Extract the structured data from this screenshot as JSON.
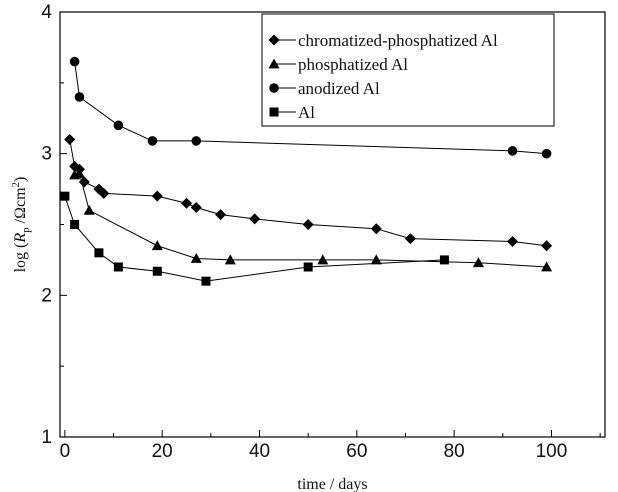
{
  "chart_data": {
    "type": "line",
    "xlabel": "time / days",
    "ylabel": {
      "prefix": "log (",
      "italic": "R",
      "subscript": "p",
      "middle": " /Ωcm",
      "superscript": "2",
      "suffix": ")"
    },
    "xlim": [
      -1,
      111
    ],
    "ylim": [
      1,
      4
    ],
    "xticks": [
      0,
      20,
      40,
      60,
      80,
      100
    ],
    "yticks": [
      1,
      2,
      3,
      4
    ],
    "grid": false,
    "legend_position": "top-right",
    "series": [
      {
        "name": "chromatized-phosphatized Al",
        "marker": "diamond",
        "x": [
          1,
          2,
          3,
          4,
          7,
          8,
          19,
          25,
          27,
          32,
          39,
          50,
          64,
          71,
          92,
          99
        ],
        "y": [
          3.1,
          2.91,
          2.89,
          2.8,
          2.75,
          2.72,
          2.7,
          2.65,
          2.62,
          2.57,
          2.54,
          2.5,
          2.47,
          2.4,
          2.38,
          2.35
        ]
      },
      {
        "name": "phosphatized Al",
        "marker": "triangle",
        "x": [
          2,
          3,
          5,
          19,
          27,
          34,
          53,
          64,
          85,
          99
        ],
        "y": [
          2.85,
          2.86,
          2.6,
          2.35,
          2.26,
          2.25,
          2.25,
          2.25,
          2.23,
          2.2
        ]
      },
      {
        "name": "anodized Al",
        "marker": "circle",
        "x": [
          2,
          3,
          11,
          18,
          27,
          92,
          99
        ],
        "y": [
          3.65,
          3.4,
          3.2,
          3.09,
          3.09,
          3.02,
          3.0
        ]
      },
      {
        "name": "Al",
        "marker": "square",
        "x": [
          0,
          2,
          7,
          11,
          19,
          29,
          50,
          78
        ],
        "y": [
          2.7,
          2.5,
          2.3,
          2.2,
          2.17,
          2.1,
          2.2,
          2.25
        ]
      }
    ]
  }
}
